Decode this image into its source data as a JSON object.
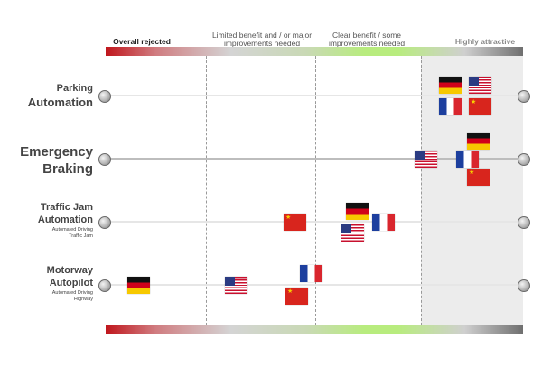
{
  "scale": {
    "headers": {
      "overall_rejected": "Overall rejected",
      "limited_line1": "Limited benefit and / or major",
      "limited_line2": "improvements needed",
      "clear_line1": "Clear benefit / some",
      "clear_line2": "improvements needed",
      "highly_attractive": "Highly attractive"
    },
    "colors": {
      "rejected": "#c0161c",
      "neutral": "#d4d4d4",
      "clear": "#b8ec7e",
      "attractive": "#6f6f6f"
    }
  },
  "rows": [
    {
      "line1": "Parking",
      "line2": "Automation",
      "sub1": "",
      "sub2": ""
    },
    {
      "line1": "Emergency",
      "line2": "Braking",
      "sub1": "",
      "sub2": ""
    },
    {
      "line1": "Traffic Jam",
      "line2": "Automation",
      "sub1": "Automated Driving",
      "sub2": "Traffic Jam"
    },
    {
      "line1": "Motorway",
      "line2": "Autopilot",
      "sub1": "Automated Driving",
      "sub2": "Highway"
    }
  ],
  "flags": {
    "germany": "germany-flag-icon",
    "usa": "usa-flag-icon",
    "france": "france-flag-icon",
    "china": "china-flag-icon"
  }
}
